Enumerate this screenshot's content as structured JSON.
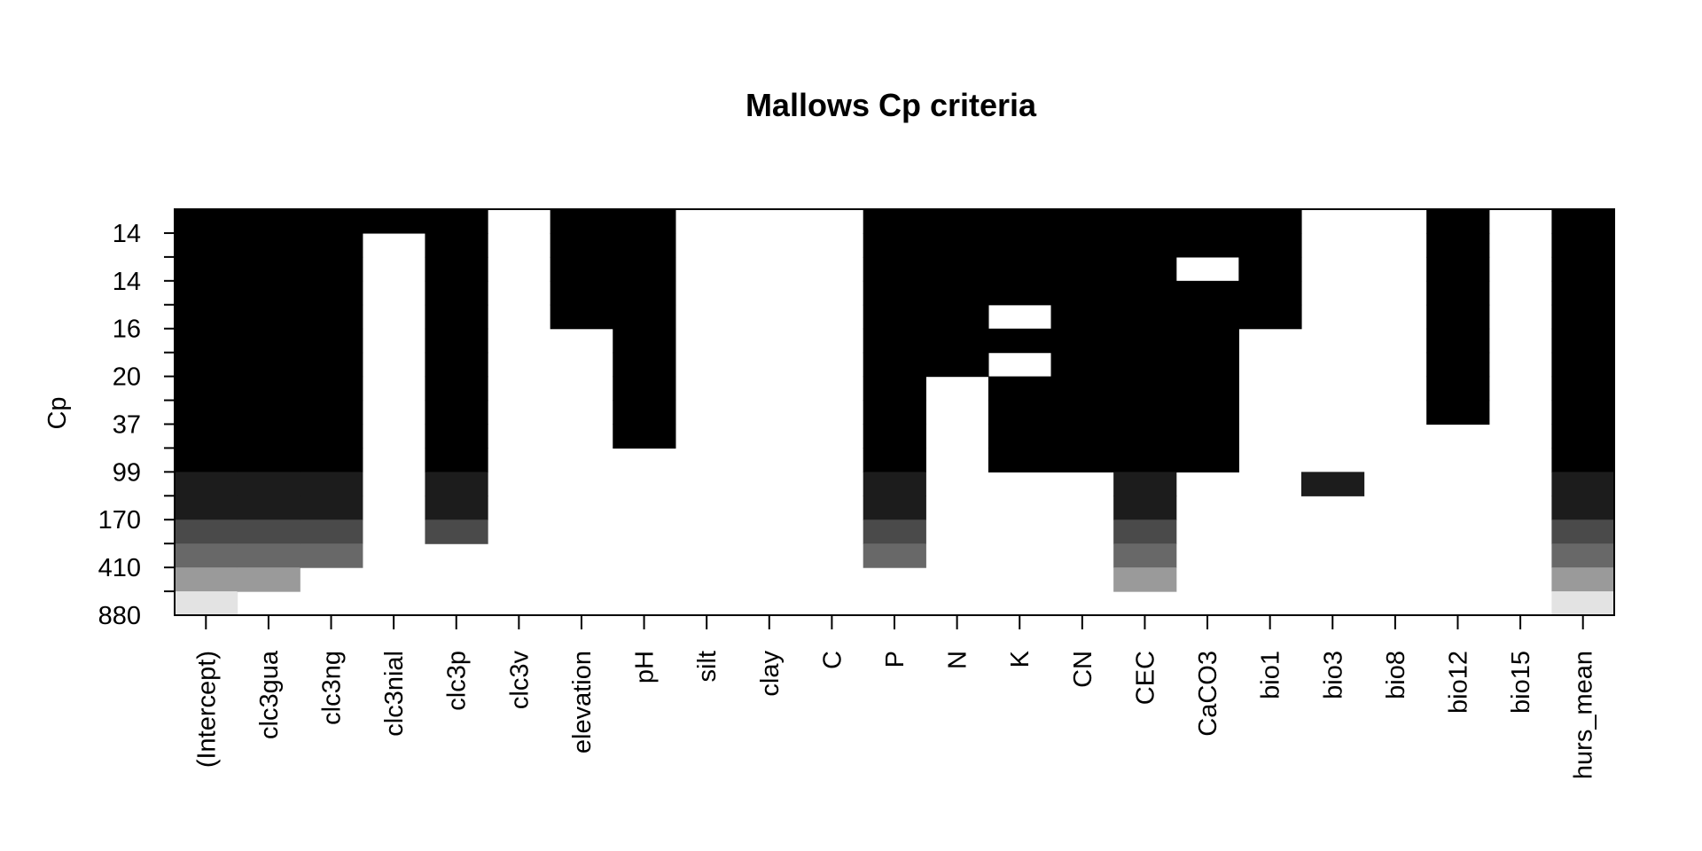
{
  "chart_data": {
    "type": "heatmap",
    "title": "Mallows Cp criteria",
    "ylabel": "Cp",
    "xlabel": "",
    "y_tick_labels": [
      "14",
      "14",
      "16",
      "20",
      "37",
      "99",
      "170",
      "410",
      "880"
    ],
    "variables": [
      "(Intercept)",
      "clc3gua",
      "clc3ng",
      "clc3nial",
      "clc3p",
      "clc3v",
      "elevation",
      "pH",
      "silt",
      "clay",
      "C",
      "P",
      "N",
      "K",
      "CN",
      "CEC",
      "CaCO3",
      "bio1",
      "bio3",
      "bio8",
      "bio12",
      "bio15",
      "hurs_mean"
    ],
    "row_count": 17,
    "row_levels": [
      0,
      0,
      0,
      0,
      0,
      0,
      0,
      0,
      0,
      0,
      0,
      1,
      1,
      2,
      3,
      4,
      5
    ],
    "level_colors": [
      "#000000",
      "#1c1c1c",
      "#4a4a4a",
      "#686868",
      "#9a9a9a",
      "#e3e3e3"
    ],
    "inclusion_rows_to": [
      17,
      16,
      15,
      1,
      14,
      0,
      5,
      11,
      0,
      0,
      0,
      15,
      7,
      11,
      11,
      16,
      11,
      5,
      12,
      0,
      9,
      0,
      17
    ],
    "gaps": [
      {
        "variable": "clc3nial",
        "rows": [
          2,
          3
        ]
      },
      {
        "variable": "pH",
        "rows": [
          10
        ]
      },
      {
        "variable": "clay",
        "rows": [
          0,
          1,
          2,
          3
        ]
      },
      {
        "variable": "K",
        "rows": [
          4,
          6
        ]
      },
      {
        "variable": "CaCO3",
        "rows": [
          2
        ]
      },
      {
        "variable": "bio3",
        "rows": [
          0,
          1,
          2,
          3,
          4,
          5,
          6,
          7,
          8,
          9,
          10
        ]
      }
    ],
    "ticks_at_row_boundaries": true
  }
}
